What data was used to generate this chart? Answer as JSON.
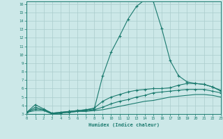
{
  "title": "",
  "xlabel": "Humidex (Indice chaleur)",
  "ylabel": "",
  "background_color": "#cce8e8",
  "grid_color": "#aacccc",
  "line_color": "#1a7a6e",
  "xmin": 0,
  "xmax": 23,
  "ymin": 3,
  "ymax": 16,
  "x_ticks": [
    0,
    1,
    2,
    3,
    4,
    5,
    6,
    7,
    8,
    9,
    10,
    11,
    12,
    13,
    14,
    15,
    16,
    17,
    18,
    19,
    20,
    21,
    22,
    23
  ],
  "y_ticks": [
    3,
    4,
    5,
    6,
    7,
    8,
    9,
    10,
    11,
    12,
    13,
    14,
    15,
    16
  ],
  "curve1_x": [
    0,
    1,
    2,
    3,
    4,
    5,
    6,
    7,
    8,
    9,
    10,
    11,
    12,
    13,
    14,
    15,
    16,
    17,
    18,
    19,
    20,
    21,
    22,
    23
  ],
  "curve1_y": [
    3.2,
    4.1,
    3.6,
    3.1,
    3.2,
    3.3,
    3.4,
    3.5,
    3.6,
    7.5,
    10.3,
    12.2,
    14.2,
    15.7,
    16.5,
    16.3,
    13.1,
    9.3,
    7.5,
    6.8,
    6.6,
    6.5,
    6.2,
    5.7
  ],
  "curve2_x": [
    0,
    1,
    2,
    3,
    4,
    5,
    6,
    7,
    8,
    9,
    10,
    11,
    12,
    13,
    14,
    15,
    16,
    17,
    18,
    19,
    20,
    21,
    22,
    23
  ],
  "curve2_y": [
    3.2,
    3.8,
    3.5,
    3.1,
    3.2,
    3.3,
    3.4,
    3.5,
    3.7,
    4.5,
    5.0,
    5.3,
    5.6,
    5.8,
    5.9,
    6.0,
    6.0,
    6.1,
    6.4,
    6.6,
    6.6,
    6.5,
    6.2,
    5.8
  ],
  "curve3_x": [
    0,
    1,
    2,
    3,
    4,
    5,
    6,
    7,
    8,
    9,
    10,
    11,
    12,
    13,
    14,
    15,
    16,
    17,
    18,
    19,
    20,
    21,
    22,
    23
  ],
  "curve3_y": [
    3.2,
    3.6,
    3.5,
    3.0,
    3.1,
    3.2,
    3.3,
    3.4,
    3.5,
    3.8,
    4.2,
    4.5,
    4.7,
    5.0,
    5.2,
    5.5,
    5.6,
    5.7,
    5.8,
    5.9,
    5.9,
    5.9,
    5.7,
    5.5
  ],
  "curve4_x": [
    0,
    1,
    2,
    3,
    4,
    5,
    6,
    7,
    8,
    9,
    10,
    11,
    12,
    13,
    14,
    15,
    16,
    17,
    18,
    19,
    20,
    21,
    22,
    23
  ],
  "curve4_y": [
    3.2,
    3.4,
    3.4,
    3.0,
    3.1,
    3.2,
    3.3,
    3.3,
    3.4,
    3.5,
    3.7,
    3.9,
    4.1,
    4.3,
    4.5,
    4.6,
    4.8,
    5.0,
    5.1,
    5.2,
    5.3,
    5.3,
    5.2,
    5.0
  ]
}
